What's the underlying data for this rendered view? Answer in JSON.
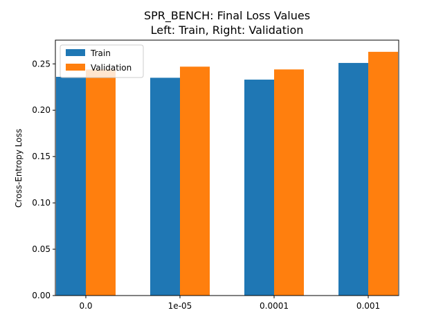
{
  "chart_data": {
    "type": "bar",
    "title": "SPR_BENCH: Final Loss Values",
    "subtitle": "Left: Train, Right: Validation",
    "xlabel": "",
    "ylabel": "Cross-Entropy Loss",
    "categories": [
      "0.0",
      "1e-05",
      "0.0001",
      "0.001"
    ],
    "series": [
      {
        "name": "Train",
        "color": "#1f77b4",
        "values": [
          0.236,
          0.235,
          0.233,
          0.251
        ]
      },
      {
        "name": "Validation",
        "color": "#ff7f0e",
        "values": [
          0.244,
          0.247,
          0.244,
          0.263
        ]
      }
    ],
    "ylim": [
      0,
      0.2756
    ],
    "yticks": [
      0.0,
      0.05,
      0.1,
      0.15,
      0.2,
      0.25
    ],
    "ytick_labels": [
      "0.00",
      "0.05",
      "0.10",
      "0.15",
      "0.20",
      "0.25"
    ],
    "grid": false,
    "legend_position": "top-left"
  }
}
